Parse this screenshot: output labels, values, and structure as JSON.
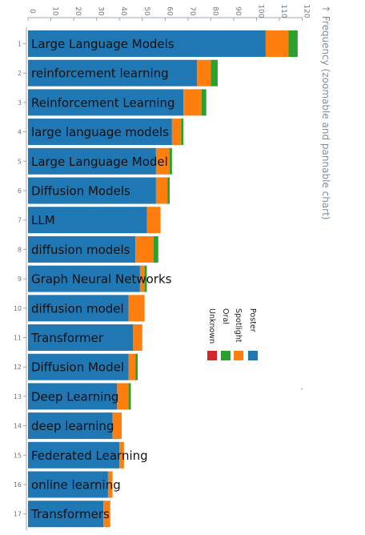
{
  "chart_data": {
    "type": "bar",
    "orientation": "horizontal-stacked",
    "ylabel": "↑ Frequency (zoomable and pannable chart)",
    "xlim": [
      0,
      120
    ],
    "ticks": [
      0,
      10,
      20,
      30,
      40,
      50,
      60,
      70,
      80,
      90,
      100,
      110,
      120
    ],
    "ranks": [
      "1",
      "2",
      "3",
      "4",
      "5",
      "6",
      "7",
      "8",
      "9",
      "10",
      "11",
      "12",
      "13",
      "14",
      "15",
      "16",
      "17"
    ],
    "categories": [
      "Large Language Models",
      "reinforcement learning",
      "Reinforcement Learning",
      "large language models",
      "Large Language Model",
      "Diffusion Models",
      "LLM",
      "diffusion models",
      "Graph Neural Networks",
      "diffusion model",
      "Transformer",
      "Diffusion Model",
      "Deep Learning",
      "deep learning",
      "Federated Learning",
      "online learning",
      "Transformers"
    ],
    "series": [
      {
        "name": "Poster",
        "color": "#1f77b4",
        "values": [
          104,
          74,
          68,
          63,
          56,
          56,
          52,
          47,
          49,
          44,
          46,
          44,
          39,
          37,
          40,
          35,
          33
        ]
      },
      {
        "name": "Spotlight",
        "color": "#ff7f0e",
        "values": [
          10,
          6,
          8,
          4,
          6,
          5,
          6,
          8,
          2,
          7,
          4,
          3,
          5,
          4,
          2,
          2,
          3
        ]
      },
      {
        "name": "Oral",
        "color": "#2ca02c",
        "values": [
          4,
          3,
          2,
          1,
          1,
          1,
          0,
          2,
          1,
          0,
          0,
          1,
          1,
          0,
          0,
          0,
          0
        ]
      },
      {
        "name": "Unknown",
        "color": "#d62728",
        "values": [
          0,
          0,
          0,
          0,
          0,
          0,
          0,
          0,
          0,
          0,
          0,
          0,
          0,
          0,
          0,
          0,
          0
        ]
      }
    ],
    "legend": {
      "position": "right",
      "rotated": true
    },
    "grid": false
  }
}
